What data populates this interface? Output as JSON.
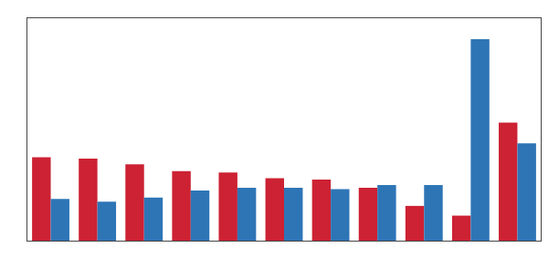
{
  "chart_data": {
    "type": "bar",
    "categories": [
      null,
      null,
      null,
      null,
      null,
      null,
      null,
      null,
      null,
      null,
      null
    ],
    "series": [
      {
        "color": "#cc2233",
        "values": [
          6.0,
          5.9,
          5.5,
          5.0,
          4.9,
          4.5,
          4.4,
          3.8,
          2.5,
          1.8,
          8.5
        ]
      },
      {
        "color": "#2e75b6",
        "values": [
          3.0,
          2.8,
          3.1,
          3.6,
          3.8,
          3.8,
          3.7,
          4.0,
          4.0,
          14.5,
          7.0
        ]
      }
    ],
    "ylim": [
      0,
      16
    ],
    "yticks": [],
    "grid": false,
    "tick_labels": false
  }
}
